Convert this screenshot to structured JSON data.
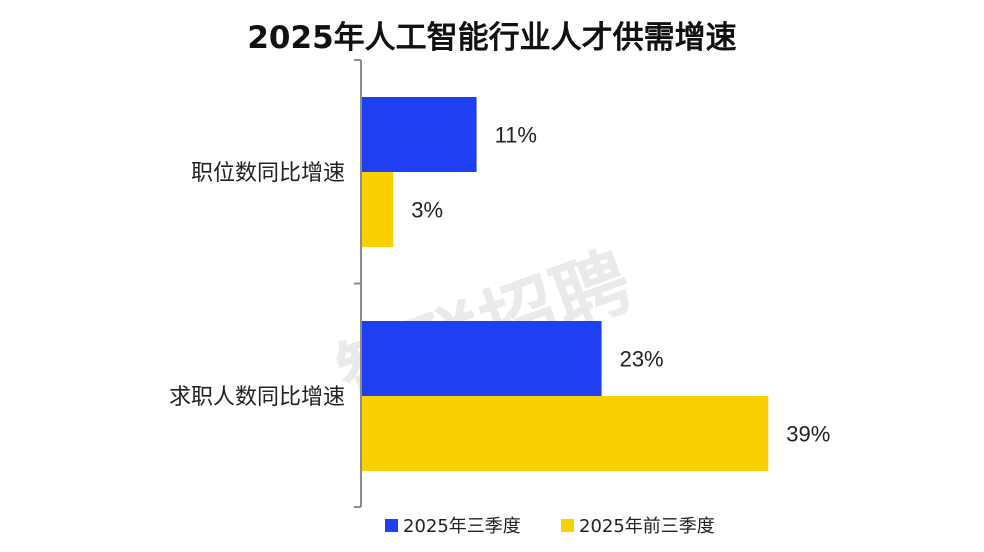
{
  "chart_data": {
    "type": "bar",
    "orientation": "horizontal",
    "title": "2025年人工智能行业人才供需增速",
    "categories": [
      "职位数同比增速",
      "求职人数同比增速"
    ],
    "series": [
      {
        "name": "2025年三季度",
        "color": "#1f3ff2",
        "values": [
          11,
          23
        ],
        "labels": [
          "11%",
          "23%"
        ]
      },
      {
        "name": "2025年前三季度",
        "color": "#fbd000",
        "values": [
          3,
          39
        ],
        "labels": [
          "3%",
          "39%"
        ]
      }
    ],
    "xlim": [
      0,
      48
    ],
    "legend": "bottom",
    "grid": false
  },
  "watermark": "智联招聘"
}
